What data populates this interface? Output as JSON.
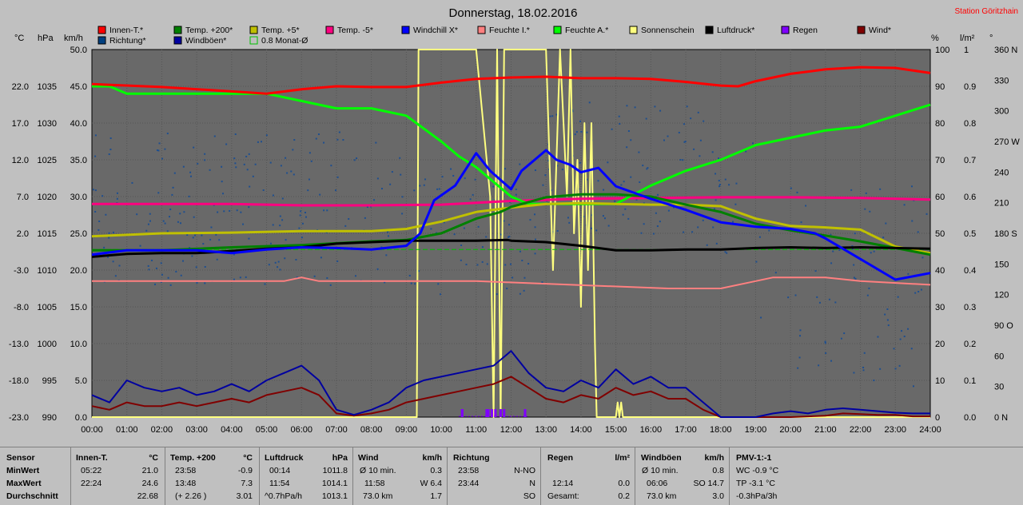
{
  "title": "Donnerstag, 18.02.2016",
  "station": "Station Göritzhain",
  "units": {
    "c": "°C",
    "hpa": "hPa",
    "kmh": "km/h",
    "pct": "%",
    "lm2": "l/m²",
    "deg": "°"
  },
  "legend": [
    {
      "label": "Innen-T.*",
      "color": "#ff0000"
    },
    {
      "label": "Temp. +200*",
      "color": "#008000"
    },
    {
      "label": "Temp. +5*",
      "color": "#c0c000"
    },
    {
      "label": "Temp. -5*",
      "color": "#ff0080"
    },
    {
      "label": "Windchill X*",
      "color": "#0000ff"
    },
    {
      "label": "Feuchte I.*",
      "color": "#ff8080"
    },
    {
      "label": "Feuchte A.*",
      "color": "#00ff00"
    },
    {
      "label": "Sonnenschein",
      "color": "#ffff80"
    },
    {
      "label": "Luftdruck*",
      "color": "#000000"
    },
    {
      "label": "Regen",
      "color": "#8000ff"
    },
    {
      "label": "Wind*",
      "color": "#800000"
    },
    {
      "label": "Richtung*",
      "color": "#004080"
    },
    {
      "label": "Windböen*",
      "color": "#0000a0"
    },
    {
      "label": "0.8 Monat-Ø",
      "color": "#00c000"
    }
  ],
  "chart_data": {
    "type": "line",
    "title": "Donnerstag, 18.02.2016",
    "x_ticks": [
      "00:00",
      "01:00",
      "02:00",
      "03:00",
      "04:00",
      "05:00",
      "06:00",
      "07:00",
      "08:00",
      "09:00",
      "10:00",
      "11:00",
      "12:00",
      "13:00",
      "14:00",
      "15:00",
      "16:00",
      "17:00",
      "18:00",
      "19:00",
      "20:00",
      "21:00",
      "22:00",
      "23:00",
      "24:00"
    ],
    "axes": {
      "temp_c": [
        "22.0",
        "17.0",
        "12.0",
        "7.0",
        "2.0",
        "-3.0",
        "-8.0",
        "-13.0",
        "-18.0",
        "-23.0"
      ],
      "pressure_hpa": [
        "1035",
        "1030",
        "1025",
        "1020",
        "1015",
        "1010",
        "1005",
        "1000",
        "995",
        "990"
      ],
      "wind_kmh": [
        "50.0",
        "45.0",
        "40.0",
        "35.0",
        "30.0",
        "25.0",
        "20.0",
        "15.0",
        "10.0",
        "5.0",
        "0.0"
      ],
      "humidity_pct": [
        "100",
        "90",
        "80",
        "70",
        "60",
        "50",
        "40",
        "30",
        "20",
        "10",
        "0"
      ],
      "rain_lm2": [
        "1",
        "0.9",
        "0.8",
        "0.7",
        "0.6",
        "0.5",
        "0.4",
        "0.3",
        "0.2",
        "0.1",
        "0.0"
      ],
      "direction_deg": [
        "360 N",
        "330",
        "300",
        "270 W",
        "240",
        "210",
        "180 S",
        "150",
        "120",
        "90 O",
        "60",
        "30",
        "0 N"
      ]
    },
    "series": [
      {
        "name": "Innen-T.*",
        "color": "#ff0000",
        "axis": "temp_c",
        "x": [
          0,
          2,
          4,
          5,
          6,
          7,
          8,
          9,
          10,
          11,
          12,
          13,
          14,
          15,
          16,
          17,
          18,
          18.5,
          19,
          20,
          21,
          22,
          23,
          24
        ],
        "y": [
          22.3,
          21.9,
          21.3,
          21.0,
          21.6,
          22.0,
          21.9,
          21.9,
          22.5,
          23.0,
          23.2,
          23.3,
          23.1,
          23.1,
          23.0,
          22.6,
          22.1,
          22.0,
          22.7,
          23.7,
          24.3,
          24.6,
          24.5,
          23.8
        ]
      },
      {
        "name": "Temp. +200*",
        "color": "#008000",
        "axis": "temp_c",
        "x": [
          0,
          2,
          4,
          6,
          8,
          9,
          10,
          11,
          11.7,
          12,
          13,
          14,
          15,
          16,
          17,
          18,
          19,
          20,
          21,
          22,
          23,
          24
        ],
        "y": [
          -0.3,
          -0.3,
          0.1,
          0.4,
          0.9,
          1.1,
          2.0,
          4.0,
          4.9,
          5.6,
          6.9,
          7.3,
          7.3,
          7.0,
          5.9,
          4.9,
          3.3,
          2.4,
          1.7,
          0.9,
          0.0,
          -0.9
        ]
      },
      {
        "name": "Temp. +5*",
        "color": "#c0c000",
        "axis": "temp_c",
        "x": [
          0,
          2,
          4,
          6,
          8,
          9,
          10,
          11,
          12,
          13,
          14,
          15,
          16,
          17,
          18,
          19,
          20,
          21,
          22,
          23,
          24
        ],
        "y": [
          1.6,
          2.0,
          2.1,
          2.3,
          2.3,
          2.6,
          3.6,
          4.9,
          5.5,
          6.0,
          6.1,
          6.0,
          5.9,
          5.9,
          5.7,
          4.0,
          3.0,
          2.8,
          2.5,
          0.2,
          -0.7
        ]
      },
      {
        "name": "Temp. -5*",
        "color": "#ff0080",
        "axis": "temp_c",
        "x": [
          0,
          2,
          4,
          6,
          8,
          10,
          12,
          14,
          16,
          18,
          20,
          22,
          24
        ],
        "y": [
          6.0,
          6.0,
          6.0,
          5.8,
          5.8,
          5.9,
          6.4,
          6.7,
          6.8,
          6.9,
          6.9,
          6.8,
          6.6
        ]
      },
      {
        "name": "Windchill X*",
        "color": "#0000ff",
        "axis": "temp_c",
        "x": [
          0,
          1,
          2,
          3,
          4,
          5,
          6,
          7,
          8,
          9,
          9.4,
          9.8,
          10.4,
          11,
          11.4,
          12,
          12.3,
          13,
          13.3,
          13.7,
          14,
          14.5,
          15,
          16,
          17,
          18,
          19,
          20,
          20.7,
          21,
          22,
          23,
          24
        ],
        "y": [
          -0.9,
          -0.3,
          -0.3,
          -0.3,
          -0.7,
          -0.2,
          0.1,
          0.0,
          -0.2,
          0.3,
          2.0,
          6.5,
          8.5,
          12.9,
          10.5,
          8.0,
          10.5,
          13.3,
          12.0,
          11.3,
          10.3,
          10.9,
          8.4,
          6.7,
          5.2,
          3.5,
          2.9,
          2.6,
          2.0,
          1.3,
          -1.5,
          -4.3,
          -3.4
        ]
      },
      {
        "name": "Feuchte I.*",
        "color": "#ff8080",
        "axis": "humidity_pct",
        "x": [
          0,
          3,
          5.5,
          6,
          6.5,
          7,
          10,
          11,
          16.5,
          17,
          18,
          19,
          19.5,
          21,
          22,
          24
        ],
        "y": [
          37,
          37,
          37,
          38,
          37,
          37,
          37,
          37,
          35,
          35,
          35,
          37,
          38,
          38,
          37,
          36
        ]
      },
      {
        "name": "Feuchte A.*",
        "color": "#00ff00",
        "axis": "humidity_pct",
        "x": [
          0,
          0.5,
          1,
          2,
          3,
          4,
          5,
          6,
          7,
          8,
          9,
          10,
          10.5,
          11,
          11.5,
          12,
          12.5,
          13,
          14,
          15,
          16,
          17,
          18,
          19,
          20,
          21,
          22,
          23,
          24
        ],
        "y": [
          90,
          90,
          88,
          88,
          88,
          88,
          88,
          86,
          84,
          84,
          82,
          75,
          71,
          68,
          64,
          60,
          58,
          58,
          58,
          58,
          63,
          67,
          70,
          74,
          76,
          78,
          79,
          82,
          85
        ]
      },
      {
        "name": "Luftdruck*",
        "color": "#000000",
        "axis": "pressure_hpa",
        "x": [
          0,
          1,
          2,
          3,
          4,
          5,
          6,
          7,
          8,
          9,
          10,
          11,
          11.9,
          12,
          13,
          14,
          15,
          16,
          17,
          18,
          19,
          20,
          21,
          22,
          23,
          24
        ],
        "y": [
          1011.8,
          1012.2,
          1012.3,
          1012.3,
          1012.6,
          1012.9,
          1013.1,
          1013.6,
          1013.8,
          1014.0,
          1014.0,
          1014.0,
          1014.1,
          1014.0,
          1013.8,
          1013.3,
          1012.7,
          1012.7,
          1012.8,
          1012.8,
          1013.0,
          1013.1,
          1013.0,
          1013.1,
          1013.0,
          1012.9
        ]
      },
      {
        "name": "Windböen*",
        "color": "#0000a0",
        "axis": "wind_kmh",
        "x": [
          0,
          0.5,
          1,
          1.5,
          2,
          2.5,
          3,
          3.5,
          4,
          4.5,
          5,
          5.5,
          6,
          6.5,
          7,
          7.5,
          8,
          8.5,
          9,
          9.5,
          10,
          10.5,
          11,
          11.5,
          12,
          12.5,
          13,
          13.5,
          14,
          14.5,
          15,
          15.5,
          16,
          16.5,
          17,
          17.5,
          18,
          19,
          19.5,
          20,
          20.5,
          21,
          21.5,
          22,
          22.5,
          23,
          23.5,
          24
        ],
        "y": [
          3.0,
          2.0,
          5.0,
          4.0,
          3.5,
          4.0,
          3.0,
          3.5,
          4.5,
          3.5,
          5.0,
          6.0,
          7.0,
          5.0,
          1.0,
          0.3,
          1.0,
          2.0,
          4.0,
          5.0,
          5.5,
          6.0,
          6.5,
          7.0,
          9.0,
          6.0,
          4.0,
          3.5,
          5.0,
          4.0,
          6.5,
          4.5,
          5.5,
          4.0,
          4.0,
          2.0,
          0.0,
          0.0,
          0.5,
          0.8,
          0.5,
          1.0,
          1.2,
          1.0,
          0.8,
          0.6,
          0.5,
          0.5
        ]
      },
      {
        "name": "Wind*",
        "color": "#800000",
        "axis": "wind_kmh",
        "x": [
          0,
          0.5,
          1,
          1.5,
          2,
          2.5,
          3,
          3.5,
          4,
          4.5,
          5,
          5.5,
          6,
          6.5,
          7,
          7.5,
          8,
          8.5,
          9,
          9.5,
          10,
          10.5,
          11,
          11.5,
          12,
          12.5,
          13,
          13.5,
          14,
          14.5,
          15,
          15.5,
          16,
          16.5,
          17,
          17.5,
          18,
          19,
          20,
          21,
          21.5,
          22,
          22.5,
          23,
          23.5,
          24
        ],
        "y": [
          1.5,
          1.0,
          2.0,
          1.5,
          1.5,
          2.0,
          1.5,
          2.0,
          2.5,
          2.0,
          3.0,
          3.5,
          4.0,
          3.0,
          0.5,
          0.2,
          0.5,
          1.0,
          2.0,
          2.5,
          3.0,
          3.5,
          4.0,
          4.5,
          5.5,
          4.0,
          2.5,
          2.0,
          3.0,
          2.5,
          4.0,
          3.0,
          3.5,
          2.5,
          2.5,
          1.0,
          0.0,
          0.0,
          0.0,
          0.2,
          0.5,
          0.4,
          0.3,
          0.3,
          0.1,
          0.1
        ]
      },
      {
        "name": "Sonnenschein",
        "color": "#ffff80",
        "axis": "humidity_pct",
        "x": [
          0,
          9.3,
          9.35,
          9.6,
          11.0,
          11.1,
          11.4,
          11.5,
          11.6,
          11.7,
          11.8,
          13.0,
          13.2,
          13.4,
          13.5,
          13.6,
          13.7,
          13.8,
          13.9,
          14.0,
          14.1,
          14.2,
          14.3,
          14.4,
          14.45,
          14.5,
          15.0,
          15.05,
          15.1,
          15.15,
          15.2,
          24
        ],
        "y": [
          0,
          0,
          100,
          100,
          100,
          90,
          60,
          0,
          100,
          0,
          100,
          100,
          40,
          100,
          80,
          60,
          100,
          50,
          70,
          30,
          80,
          40,
          80,
          20,
          0,
          0,
          0,
          4,
          0,
          4,
          0,
          0
        ]
      },
      {
        "name": "0.8 Monat-Ø",
        "color": "#00c000",
        "axis": "pressure_hpa",
        "x": [
          0,
          24
        ],
        "y": [
          1012.8,
          1012.8
        ]
      }
    ],
    "rain_marks_x": [
      10.6,
      10.6,
      11.3,
      11.35,
      11.45,
      11.55,
      11.7,
      11.8,
      12.4
    ],
    "direction_scatter": "Richtung* (dots, 0-360°)"
  },
  "stats": {
    "labels": {
      "sensor": "Sensor",
      "min": "MinWert",
      "max": "MaxWert",
      "avg": "Durchschnitt"
    },
    "innen": {
      "h1": "Innen-T.",
      "h2": "°C",
      "min_t": "05:22",
      "min_v": "21.0",
      "max_t": "22:24",
      "max_v": "24.6",
      "avg_v": "22.68"
    },
    "temp200": {
      "h1": "Temp. +200",
      "h2": "°C",
      "min_t": "23:58",
      "min_v": "-0.9",
      "max_t": "13:48",
      "max_v": "7.3",
      "avg_t": "(+ 2.26 )",
      "avg_v": "3.01"
    },
    "luftdruck": {
      "h1": "Luftdruck",
      "h2": "hPa",
      "min_t": "00:14",
      "min_v": "1011.8",
      "max_t": "11:54",
      "max_v": "1014.1",
      "avg_t": "^0.7hPa/h",
      "avg_v": "1013.1"
    },
    "wind": {
      "h1": "Wind",
      "h2": "km/h",
      "min_t": "Ø 10 min.",
      "min_v": "0.3",
      "max_t": "11:58",
      "max_v": "W 6.4",
      "avg_t": "73.0 km",
      "avg_v": "1.7"
    },
    "richtung": {
      "h1": "Richtung",
      "min_t": "23:58",
      "min_v": "N-NO",
      "max_t": "23:44",
      "max_v": "N",
      "avg_v": "SO"
    },
    "regen": {
      "h1": "Regen",
      "h2": "l/m²",
      "max_t": "12:14",
      "max_v": "0.0",
      "avg_t": "Gesamt:",
      "avg_v": "0.2"
    },
    "boeen": {
      "h1": "Windböen",
      "h2": "km/h",
      "min_t": "Ø 10 min.",
      "min_v": "0.8",
      "max_t": "06:06",
      "max_v": "SO 14.7",
      "avg_t": "73.0 km",
      "avg_v": "3.0"
    },
    "pmv": {
      "h1": "PMV-1:-1",
      "l1": "WC -0.9 °C",
      "l2": "TP -3.1 °C",
      "l3": "-0.3hPa/3h"
    }
  }
}
